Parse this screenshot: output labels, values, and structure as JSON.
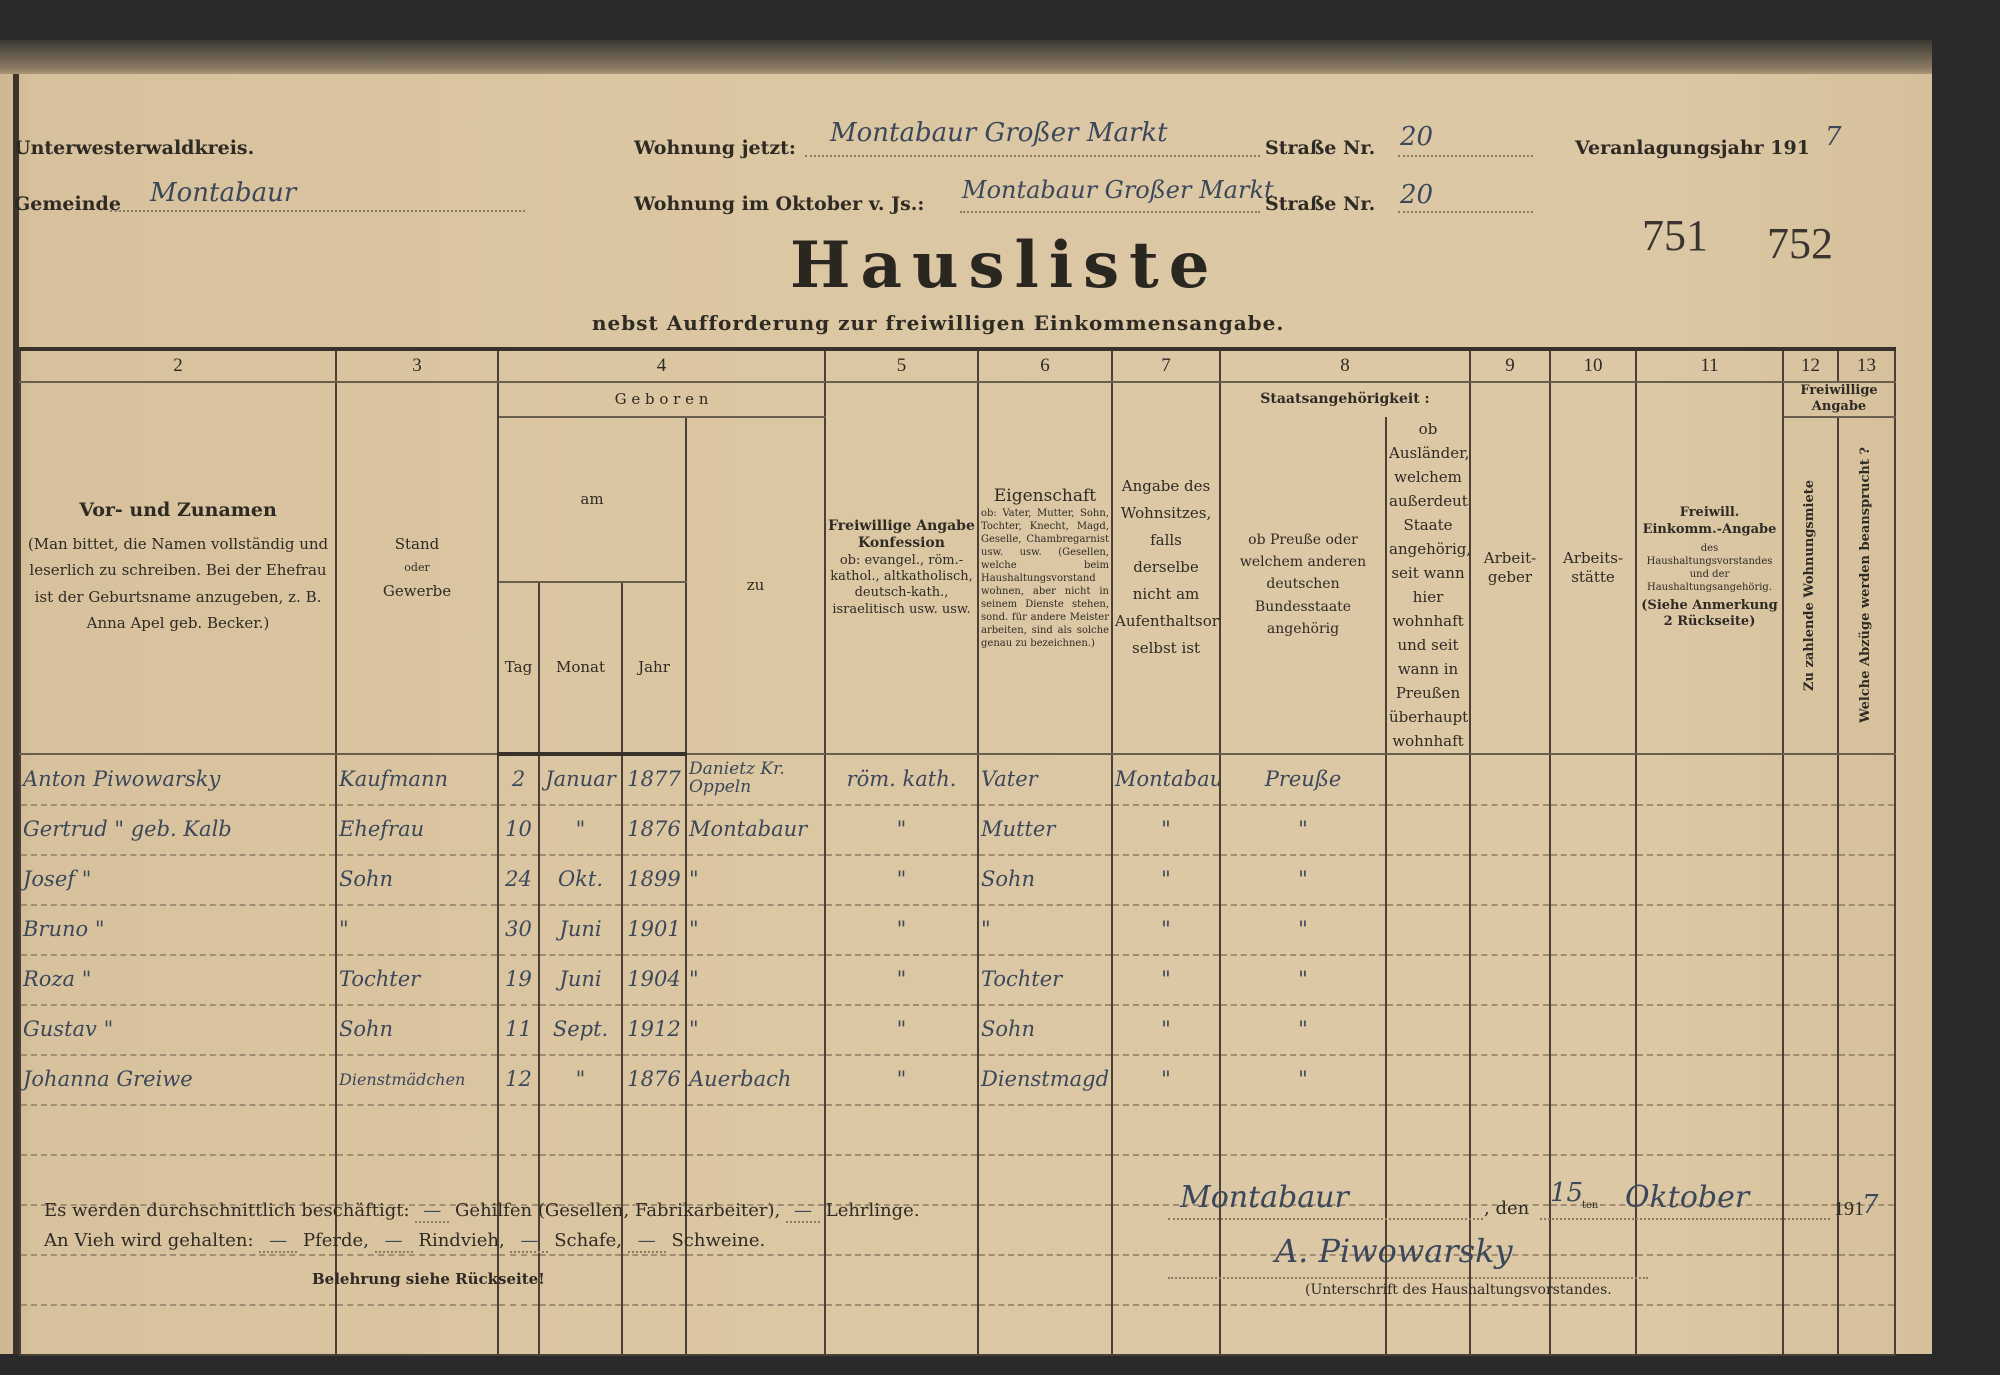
{
  "header": {
    "kreis": "Unterwesterwaldkreis.",
    "gemeinde_label": "Gemeinde",
    "gemeinde_value": "Montabaur",
    "wohnung_jetzt_label": "Wohnung jetzt:",
    "wohnung_jetzt_value": "Montabaur Großer Markt",
    "strasse_label": "Straße Nr.",
    "strasse_nr_jetzt": "20",
    "wohnung_oktober_label": "Wohnung im Oktober v. Js.:",
    "wohnung_oktober_value": "Montabaur Großer Markt",
    "strasse_nr_oktober": "20",
    "veranlagungsjahr_label": "Veranlagungsjahr 191",
    "veranlagungsjahr_value": "7",
    "stamp_numbers": [
      "751",
      "752"
    ],
    "title": "Hausliste",
    "subtitle": "nebst Aufforderung zur freiwilligen Einkommensangabe."
  },
  "table": {
    "column_numbers": [
      "2",
      "3",
      "4",
      "5",
      "6",
      "7",
      "8",
      "9",
      "10",
      "11",
      "12",
      "13"
    ],
    "headers": {
      "name_title": "Vor- und Zunamen",
      "name_note": "(Man bittet, die Namen vollständig und leserlich zu schreiben. Bei der Ehefrau ist der Geburtsname anzugeben, z. B. Anna Apel geb. Becker.)",
      "stand": "Stand",
      "oder": "oder",
      "gewerbe": "Gewerbe",
      "geboren": "G e b o r e n",
      "am": "am",
      "tag": "Tag",
      "monat": "Monat",
      "jahr": "Jahr",
      "zu": "zu",
      "konfession_title": "Freiwillige Angabe Konfession",
      "konfession_note": "ob: evangel., röm.-kathol., altkatholisch, deutsch-kath., israelitisch usw. usw.",
      "eigenschaft_title": "Eigenschaft",
      "eigenschaft_note": "ob: Vater, Mutter, Sohn, Tochter, Knecht, Magd, Geselle, Chambregarnist usw. usw. (Gesellen, welche beim Haushaltungsvorstand wohnen, aber nicht in seinem Dienste stehen, sond. für andere Meister arbeiten, sind als solche genau zu bezeichnen.)",
      "wohnsitz": "Angabe des Wohnsitzes, falls derselbe nicht am Aufenthaltsorte selbst ist",
      "staat_title": "Staatsangehörigkeit :",
      "staat_a": "ob Preuße oder welchem anderen deutschen Bundesstaate angehörig",
      "staat_b": "ob Ausländer, welchem außerdeutschen Staate angehörig, seit wann hier wohnhaft und seit wann in Preußen überhaupt wohnhaft",
      "arbeitgeber": "Arbeit-geber",
      "arbeitsstaette": "Arbeits-stätte",
      "einkommen_title": "Freiwill. Einkomm.-Angabe",
      "einkommen_note": "des Haushaltungsvorstandes und der Haushaltungsangehörig.",
      "einkommen_ref": "(Siehe Anmerkung 2 Rückseite)",
      "freiwillige_angabe": "Freiwillige Angabe",
      "miete": "Zu zahlende Wohnungsmiete",
      "abzuege": "Welche Abzüge werden beansprucht ?"
    },
    "rows": [
      [
        "Anton Piwowarsky",
        "Kaufmann",
        "2",
        "Januar",
        "1877",
        "Danietz Kr. Oppeln",
        "röm. kath.",
        "Vater",
        "Montabaur",
        "Preuße",
        "",
        "",
        "",
        "",
        "",
        ""
      ],
      [
        "Gertrud \" geb. Kalb",
        "Ehefrau",
        "10",
        "\"",
        "1876",
        "Montabaur",
        "\"",
        "Mutter",
        "\"",
        "\"",
        "",
        "",
        "",
        "",
        "",
        ""
      ],
      [
        "Josef \"",
        "Sohn",
        "24",
        "Okt.",
        "1899",
        "\"",
        "\"",
        "Sohn",
        "\"",
        "\"",
        "",
        "",
        "",
        "",
        "",
        ""
      ],
      [
        "Bruno \"",
        "\"",
        "30",
        "Juni",
        "1901",
        "\"",
        "\"",
        "\"",
        "\"",
        "\"",
        "",
        "",
        "",
        "",
        "",
        ""
      ],
      [
        "Roza \"",
        "Tochter",
        "19",
        "Juni",
        "1904",
        "\"",
        "\"",
        "Tochter",
        "\"",
        "\"",
        "",
        "",
        "",
        "",
        "",
        ""
      ],
      [
        "Gustav \"",
        "Sohn",
        "11",
        "Sept.",
        "1912",
        "\"",
        "\"",
        "Sohn",
        "\"",
        "\"",
        "",
        "",
        "",
        "",
        "",
        ""
      ],
      [
        "Johanna Greiwe",
        "Dienstmädchen",
        "12",
        "\"",
        "1876",
        "Auerbach",
        "\"",
        "Dienstmagd",
        "\"",
        "\"",
        "",
        "",
        "",
        "",
        "",
        ""
      ],
      [
        "",
        "",
        "",
        "",
        "",
        "",
        "",
        "",
        "",
        "",
        "",
        "",
        "",
        "",
        "",
        ""
      ],
      [
        "",
        "",
        "",
        "",
        "",
        "",
        "",
        "",
        "",
        "",
        "",
        "",
        "",
        "",
        "",
        ""
      ],
      [
        "",
        "",
        "",
        "",
        "",
        "",
        "",
        "",
        "",
        "",
        "",
        "",
        "",
        "",
        "",
        ""
      ],
      [
        "",
        "",
        "",
        "",
        "",
        "",
        "",
        "",
        "",
        "",
        "",
        "",
        "",
        "",
        "",
        ""
      ],
      [
        "",
        "",
        "",
        "",
        "",
        "",
        "",
        "",
        "",
        "",
        "",
        "",
        "",
        "",
        "",
        ""
      ]
    ]
  },
  "footer": {
    "line1_a": "Es werden durchschnittlich beschäftigt:",
    "gehilfen_value": "—",
    "line1_b": "Gehilfen (Gesellen, Fabrikarbeiter),",
    "lehrlinge_value": "—",
    "line1_c": "Lehrlinge.",
    "line2_a": "An Vieh wird gehalten:",
    "pferde_value": "—",
    "pferde": "Pferde,",
    "rindvieh_value": "—",
    "rindvieh": "Rindvieh,",
    "schafe_value": "—",
    "schafe": "Schafe,",
    "schweine_value": "—",
    "schweine": "Schweine.",
    "belehrung": "Belehrung siehe Rückseite!",
    "ort": "Montabaur",
    "den": ", den",
    "tag": "15",
    "tag_suffix": "ten",
    "monat": "Oktober",
    "jahr_prefix": "191",
    "jahr_value": "7",
    "signature": "A. Piwowarsky",
    "signature_label": "(Unterschrift des Haushaltungsvorstandes."
  }
}
